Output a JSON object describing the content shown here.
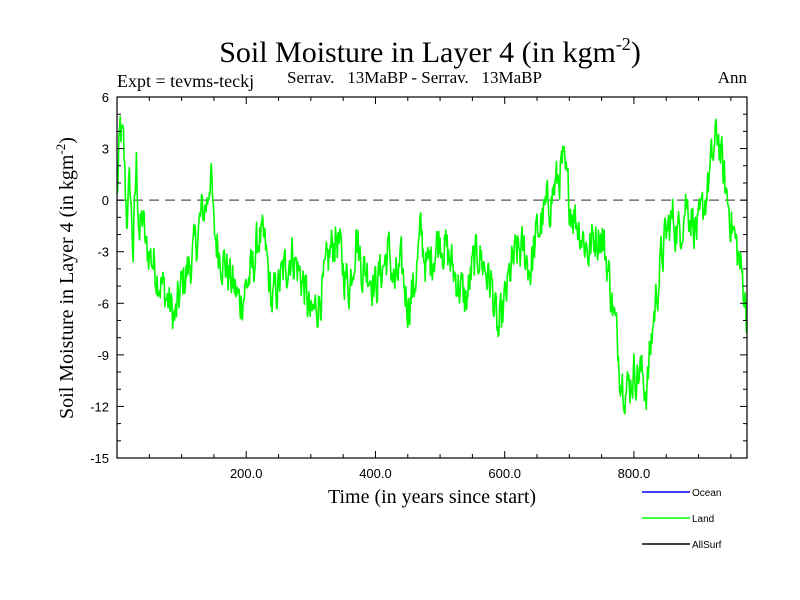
{
  "colors": {
    "land": "#00ff00",
    "ocean": "#0000ff",
    "allsurf": "#000000",
    "axis": "#000000",
    "zero_line": "#555555",
    "background": "#ffffff"
  },
  "header": {
    "title_main": "Soil Moisture in Layer 4 (in kgm",
    "title_sup": "-2",
    "title_close": ")",
    "expt": "Expt = tevms-teckj",
    "comparison": "Serrav.   13MaBP - Serrav.   13MaBP",
    "season": "Ann"
  },
  "chart_data": {
    "type": "line",
    "title": "Soil Moisture in Layer 4 (in kgm-2)",
    "xlabel": "Time (in years since start)",
    "ylabel": "Soil Moisture in Layer 4 (in kgm-2)",
    "ylabel_main": "Soil Moisture in Layer 4 (in kgm",
    "ylabel_sup": "-2",
    "ylabel_close": ")",
    "xlim": [
      0,
      975
    ],
    "ylim": [
      -15,
      6
    ],
    "xticks": [
      {
        "value": 200,
        "label": "200.0"
      },
      {
        "value": 400,
        "label": "400.0"
      },
      {
        "value": 600,
        "label": "600.0"
      },
      {
        "value": 800,
        "label": "800.0"
      }
    ],
    "yticks": [
      {
        "value": 6,
        "label": "6"
      },
      {
        "value": 3,
        "label": "3"
      },
      {
        "value": 0,
        "label": "0"
      },
      {
        "value": -3,
        "label": "-3"
      },
      {
        "value": -6,
        "label": "-6"
      },
      {
        "value": -9,
        "label": "-9"
      },
      {
        "value": -12,
        "label": "-12"
      },
      {
        "value": -15,
        "label": "-15"
      }
    ],
    "reference_line": 0,
    "legend": [
      {
        "name": "Ocean",
        "color": "#0000ff"
      },
      {
        "name": "Land",
        "color": "#00ff00"
      },
      {
        "name": "AllSurf",
        "color": "#000000"
      }
    ],
    "series": [
      {
        "name": "Land",
        "color": "#00ff00",
        "anchors": {
          "x": [
            0,
            5,
            10,
            15,
            20,
            25,
            30,
            35,
            40,
            45,
            50,
            60,
            70,
            80,
            90,
            100,
            110,
            120,
            130,
            140,
            145,
            150,
            160,
            170,
            180,
            190,
            200,
            210,
            220,
            230,
            240,
            250,
            260,
            270,
            280,
            290,
            300,
            310,
            320,
            330,
            340,
            350,
            360,
            370,
            380,
            390,
            400,
            410,
            420,
            430,
            440,
            450,
            460,
            470,
            480,
            490,
            500,
            510,
            520,
            530,
            540,
            550,
            560,
            570,
            580,
            590,
            600,
            610,
            620,
            630,
            640,
            650,
            660,
            670,
            680,
            690,
            700,
            710,
            720,
            730,
            740,
            750,
            760,
            770,
            780,
            790,
            800,
            810,
            820,
            830,
            840,
            850,
            860,
            870,
            880,
            890,
            900,
            910,
            920,
            930,
            940,
            950,
            960,
            970,
            975
          ],
          "y": [
            0,
            4,
            3,
            -1,
            1,
            -3,
            2,
            -2,
            -1,
            -3,
            -3,
            -4,
            -5,
            -6,
            -7,
            -5,
            -4,
            -3,
            -1,
            0,
            2,
            -2,
            -3,
            -4,
            -5,
            -6,
            -5,
            -4,
            -2,
            -3,
            -6,
            -5,
            -4,
            -3,
            -4,
            -5,
            -7,
            -6,
            -5,
            -3,
            -2,
            -4,
            -5,
            -2,
            -4,
            -4,
            -5,
            -4,
            -3,
            -5,
            -4,
            -6,
            -5,
            -2,
            -4,
            -3,
            -2,
            -3,
            -4,
            -5,
            -6,
            -4,
            -3,
            -4,
            -5,
            -8,
            -6,
            -4,
            -3,
            -3,
            -4,
            -2,
            -1,
            0,
            1,
            2,
            0,
            -1,
            -2,
            -3,
            -2,
            -2,
            -4,
            -7,
            -10,
            -11,
            -10,
            -10,
            -11,
            -7,
            -4,
            -2,
            -1,
            -2,
            0,
            -1,
            -2,
            0,
            2,
            4,
            1,
            -1,
            -3,
            -5,
            -7
          ]
        },
        "amplitude": 2.2
      }
    ]
  }
}
